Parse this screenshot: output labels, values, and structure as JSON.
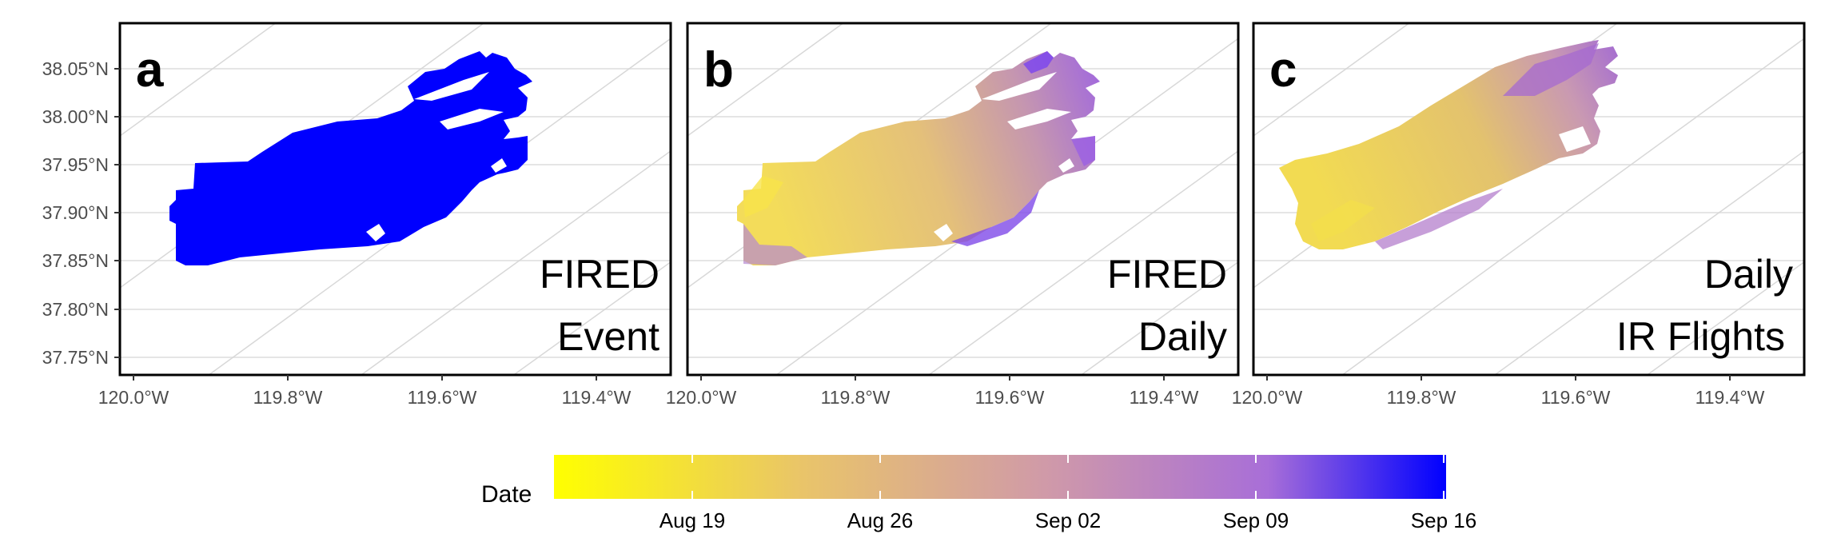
{
  "chart_data": [
    {
      "type": "map",
      "panel": "a",
      "label_lines": [
        "FIRED",
        "Event"
      ],
      "fill_color": "#0000ff",
      "xlim": [
        -120.02,
        -119.37
      ],
      "ylim": [
        37.735,
        38.08
      ],
      "x_ticks": [
        "120.0°W",
        "119.8°W",
        "119.6°W",
        "119.4°W"
      ],
      "y_ticks": [
        "37.75°N",
        "37.80°N",
        "37.85°N",
        "37.90°N",
        "37.95°N",
        "38.00°N",
        "38.05°N"
      ]
    },
    {
      "type": "map",
      "panel": "b",
      "label_lines": [
        "FIRED",
        "Daily"
      ],
      "fill_scale": "Date",
      "xlim": [
        -120.02,
        -119.37
      ],
      "ylim": [
        37.735,
        38.08
      ],
      "x_ticks": [
        "120.0°W",
        "119.8°W",
        "119.6°W",
        "119.4°W"
      ]
    },
    {
      "type": "map",
      "panel": "c",
      "label_lines": [
        "Daily",
        "IR Flights"
      ],
      "fill_scale": "Date",
      "xlim": [
        -120.02,
        -119.37
      ],
      "ylim": [
        37.735,
        38.08
      ],
      "x_ticks": [
        "120.0°W",
        "119.8°W",
        "119.6°W",
        "119.4°W"
      ]
    }
  ],
  "legend": {
    "title": "Date",
    "ticks": [
      "Aug 19",
      "Aug 26",
      "Sep 02",
      "Sep 09",
      "Sep 16"
    ],
    "colors": [
      "#ffff00",
      "#e9c46a",
      "#d4a0a0",
      "#b07ad8",
      "#0000ff"
    ]
  }
}
